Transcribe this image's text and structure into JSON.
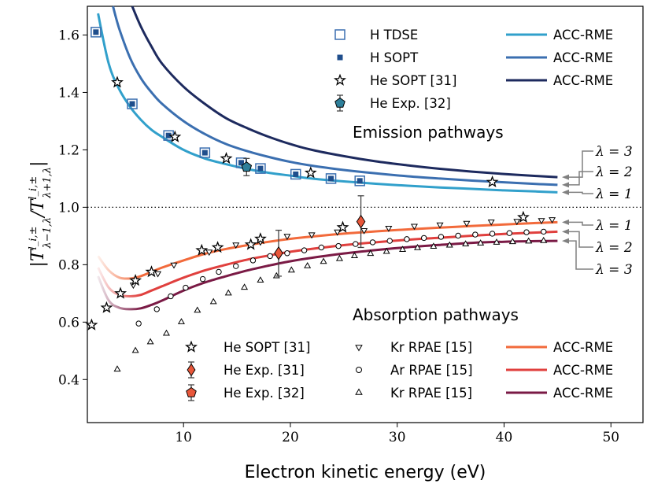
{
  "chart_data": {
    "type": "line",
    "xlabel": "Electron kinetic energy (eV)",
    "ylabel": "|T^{l_i,±}_{λ−1,λ} / T^{l_i,±}_{λ+1,λ}|",
    "ylabel_parts": {
      "bar": "|",
      "T": "T",
      "sup": "l_i,±",
      "sub1": "λ−1,λ",
      "sub2": "λ+1,λ",
      "slash": "/"
    },
    "xlim": [
      1,
      53
    ],
    "ylim": [
      0.25,
      1.7
    ],
    "x_ticks": [
      10,
      20,
      30,
      40,
      50
    ],
    "y_ticks": [
      0.4,
      0.6,
      0.8,
      1.0,
      1.2,
      1.4,
      1.6
    ],
    "x_tick_labels": [
      "10",
      "20",
      "30",
      "40",
      "50"
    ],
    "y_tick_labels": [
      "0.4",
      "0.6",
      "0.8",
      "1.0",
      "1.2",
      "1.4",
      "1.6"
    ],
    "reference_line": {
      "y": 1.0,
      "style": "dotted"
    },
    "annotations": {
      "emission": "Emission pathways",
      "absorption": "Absorption pathways",
      "emission_lambda": [
        {
          "label": "λ = 3",
          "y_target": 1.105
        },
        {
          "label": "λ = 2",
          "y_target": 1.078
        },
        {
          "label": "λ = 1",
          "y_target": 1.052
        }
      ],
      "absorption_lambda": [
        {
          "label": "λ = 1",
          "y_target": 0.948
        },
        {
          "label": "λ = 2",
          "y_target": 0.915
        },
        {
          "label": "λ = 3",
          "y_target": 0.883
        }
      ]
    },
    "series": [
      {
        "name": "ACC-RME",
        "group": "emission",
        "lambda": 1,
        "color": "#31a0cb",
        "x": [
          2,
          3,
          4,
          5,
          6,
          7,
          8,
          10,
          12,
          14,
          16,
          18,
          20,
          22,
          25,
          28,
          31,
          34,
          37,
          40,
          43,
          45
        ],
        "y": [
          1.675,
          1.5,
          1.41,
          1.35,
          1.305,
          1.27,
          1.245,
          1.2,
          1.17,
          1.15,
          1.133,
          1.12,
          1.11,
          1.1,
          1.09,
          1.082,
          1.075,
          1.069,
          1.064,
          1.059,
          1.055,
          1.052
        ]
      },
      {
        "name": "ACC-RME",
        "group": "emission",
        "lambda": 2,
        "color": "#3b6fb0",
        "x": [
          3.4,
          4,
          5,
          6,
          7,
          8,
          10,
          12,
          14,
          16,
          18,
          20,
          22,
          25,
          28,
          31,
          34,
          37,
          40,
          43,
          45
        ],
        "y": [
          1.7,
          1.62,
          1.52,
          1.45,
          1.4,
          1.36,
          1.3,
          1.255,
          1.22,
          1.195,
          1.175,
          1.158,
          1.145,
          1.13,
          1.118,
          1.108,
          1.1,
          1.093,
          1.087,
          1.081,
          1.078
        ]
      },
      {
        "name": "ACC-RME",
        "group": "emission",
        "lambda": 3,
        "color": "#1d2a5e",
        "x": [
          5.2,
          6,
          7,
          8,
          10,
          12,
          14,
          16,
          18,
          20,
          22,
          25,
          28,
          31,
          34,
          37,
          40,
          43,
          45
        ],
        "y": [
          1.7,
          1.63,
          1.56,
          1.5,
          1.42,
          1.36,
          1.31,
          1.275,
          1.245,
          1.22,
          1.2,
          1.178,
          1.16,
          1.146,
          1.134,
          1.124,
          1.116,
          1.109,
          1.105
        ]
      },
      {
        "name": "ACC-RME",
        "group": "absorption",
        "lambda": 1,
        "color": "#f26a3b",
        "x": [
          2,
          3,
          4,
          5,
          6,
          7,
          8,
          10,
          12,
          14,
          16,
          18,
          20,
          22,
          25,
          28,
          31,
          34,
          37,
          40,
          43,
          45
        ],
        "y": [
          0.83,
          0.78,
          0.755,
          0.752,
          0.76,
          0.775,
          0.79,
          0.815,
          0.838,
          0.855,
          0.868,
          0.88,
          0.89,
          0.898,
          0.908,
          0.916,
          0.923,
          0.929,
          0.935,
          0.94,
          0.945,
          0.948
        ]
      },
      {
        "name": "ACC-RME",
        "group": "absorption",
        "lambda": 2,
        "color": "#e0403e",
        "x": [
          2,
          3,
          4,
          5,
          6,
          7,
          8,
          10,
          12,
          14,
          16,
          18,
          20,
          22,
          25,
          28,
          31,
          34,
          37,
          40,
          43,
          45
        ],
        "y": [
          0.79,
          0.72,
          0.695,
          0.69,
          0.695,
          0.71,
          0.725,
          0.755,
          0.78,
          0.8,
          0.818,
          0.832,
          0.845,
          0.855,
          0.868,
          0.878,
          0.887,
          0.894,
          0.901,
          0.907,
          0.912,
          0.915
        ]
      },
      {
        "name": "ACC-RME",
        "group": "absorption",
        "lambda": 3,
        "color": "#7a1a45",
        "x": [
          2,
          3,
          4,
          5,
          6,
          7,
          8,
          10,
          12,
          14,
          16,
          18,
          20,
          22,
          25,
          28,
          31,
          34,
          37,
          40,
          43,
          45
        ],
        "y": [
          0.76,
          0.675,
          0.65,
          0.645,
          0.648,
          0.66,
          0.675,
          0.71,
          0.738,
          0.76,
          0.78,
          0.797,
          0.812,
          0.824,
          0.839,
          0.851,
          0.861,
          0.869,
          0.876,
          0.88,
          0.882,
          0.883
        ]
      }
    ],
    "markers": {
      "h_tdse": {
        "label": "H TDSE",
        "color": "#3b6fb0",
        "x": [
          1.8,
          5.2,
          8.6,
          12,
          15.4,
          17.2,
          20.5,
          23.8,
          26.5
        ],
        "y": [
          1.61,
          1.36,
          1.25,
          1.19,
          1.155,
          1.135,
          1.115,
          1.1,
          1.092
        ]
      },
      "h_sopt": {
        "label": "H SOPT",
        "color": "#1f4e8c",
        "x": [
          1.8,
          5.2,
          8.6,
          12,
          15.4,
          17.2,
          20.5,
          23.8,
          26.5
        ],
        "y": [
          1.61,
          1.36,
          1.25,
          1.19,
          1.155,
          1.135,
          1.115,
          1.1,
          1.092
        ]
      },
      "he_sopt_em": {
        "label": "He SOPT [31]",
        "x": [
          3.8,
          9.2,
          14,
          21.9,
          38.9
        ],
        "y": [
          1.435,
          1.245,
          1.17,
          1.12,
          1.088
        ]
      },
      "he_exp32_em": {
        "label": "He Exp. [32]",
        "color": "#2e7f9a",
        "x": [
          15.9
        ],
        "y": [
          1.14
        ],
        "err": [
          0.03
        ]
      },
      "he_sopt_abs": {
        "label": "He SOPT [31]",
        "x": [
          1.4,
          2.8,
          4.1,
          5.5,
          7,
          11.7,
          13.2,
          16.3,
          17.2,
          24.9,
          41.8
        ],
        "y": [
          0.59,
          0.65,
          0.7,
          0.745,
          0.775,
          0.85,
          0.86,
          0.87,
          0.89,
          0.93,
          0.965
        ]
      },
      "he_exp31_abs": {
        "label": "He Exp. [31]",
        "color": "#e8573a",
        "x": [
          18.9
        ],
        "y": [
          0.84
        ],
        "err": [
          0.08
        ]
      },
      "he_exp32_abs": {
        "label": "He Exp. [32]",
        "color": "#e8573a",
        "x": [
          26.6
        ],
        "y": [
          0.95
        ],
        "err": [
          0.09
        ]
      },
      "kr_rpae_down": {
        "label": "Kr RPAE [15]",
        "x": [
          5.3,
          7.6,
          9.1,
          12.4,
          14.9,
          17.2,
          19.7,
          22,
          24.4,
          26.9,
          29.2,
          31.6,
          34,
          36.5,
          38.8,
          41.2,
          43.5,
          44.5
        ],
        "y": [
          0.73,
          0.77,
          0.8,
          0.845,
          0.87,
          0.88,
          0.9,
          0.905,
          0.915,
          0.92,
          0.928,
          0.935,
          0.94,
          0.945,
          0.95,
          0.952,
          0.955,
          0.958
        ]
      },
      "ar_rpae": {
        "label": "Ar RPAE [15]",
        "x": [
          5.8,
          7.5,
          8.8,
          10.2,
          11.8,
          13.3,
          14.9,
          16.5,
          18.1,
          19.7,
          21.3,
          22.9,
          24.5,
          26.1,
          27.7,
          29.3,
          30.9,
          32.5,
          34.1,
          35.7,
          37.3,
          38.9,
          40.5,
          42.1,
          43.7
        ],
        "y": [
          0.595,
          0.645,
          0.69,
          0.72,
          0.75,
          0.775,
          0.795,
          0.815,
          0.83,
          0.84,
          0.85,
          0.86,
          0.865,
          0.872,
          0.878,
          0.883,
          0.889,
          0.893,
          0.897,
          0.901,
          0.905,
          0.908,
          0.91,
          0.913,
          0.915
        ]
      },
      "kr_rpae_up": {
        "label": "Kr RPAE [15]",
        "x": [
          3.8,
          5.5,
          6.9,
          8.4,
          9.8,
          11.3,
          12.8,
          14.2,
          15.7,
          17.2,
          18.7,
          20.1,
          21.6,
          23.1,
          24.6,
          26,
          27.5,
          29,
          30.5,
          31.9,
          33.4,
          34.9,
          36.4,
          37.8,
          39.3,
          40.8,
          42.3,
          43.7
        ],
        "y": [
          0.435,
          0.5,
          0.53,
          0.56,
          0.6,
          0.64,
          0.67,
          0.7,
          0.72,
          0.745,
          0.76,
          0.78,
          0.795,
          0.81,
          0.82,
          0.83,
          0.838,
          0.845,
          0.852,
          0.858,
          0.863,
          0.867,
          0.871,
          0.874,
          0.877,
          0.879,
          0.881,
          0.883
        ]
      }
    },
    "legend_emission": [
      {
        "label": "H TDSE",
        "marker": "square-open"
      },
      {
        "label": "H SOPT",
        "marker": "square-filled"
      },
      {
        "label": "He SOPT [31]",
        "marker": "star"
      },
      {
        "label": "He Exp. [32]",
        "marker": "pentagon-teal"
      },
      {
        "label": "ACC-RME",
        "line": "#31a0cb"
      },
      {
        "label": "ACC-RME",
        "line": "#3b6fb0"
      },
      {
        "label": "ACC-RME",
        "line": "#1d2a5e"
      }
    ],
    "legend_absorption": [
      {
        "label": "He SOPT [31]",
        "marker": "star"
      },
      {
        "label": "He Exp. [31]",
        "marker": "diamond-red"
      },
      {
        "label": "He Exp. [32]",
        "marker": "pentagon-red"
      },
      {
        "label": "Kr RPAE [15]",
        "marker": "triangle-down"
      },
      {
        "label": "Ar RPAE [15]",
        "marker": "circle"
      },
      {
        "label": "Kr RPAE [15]",
        "marker": "triangle-up"
      },
      {
        "label": "ACC-RME",
        "line": "#f26a3b"
      },
      {
        "label": "ACC-RME",
        "line": "#e0403e"
      },
      {
        "label": "ACC-RME",
        "line": "#7a1a45"
      }
    ]
  }
}
